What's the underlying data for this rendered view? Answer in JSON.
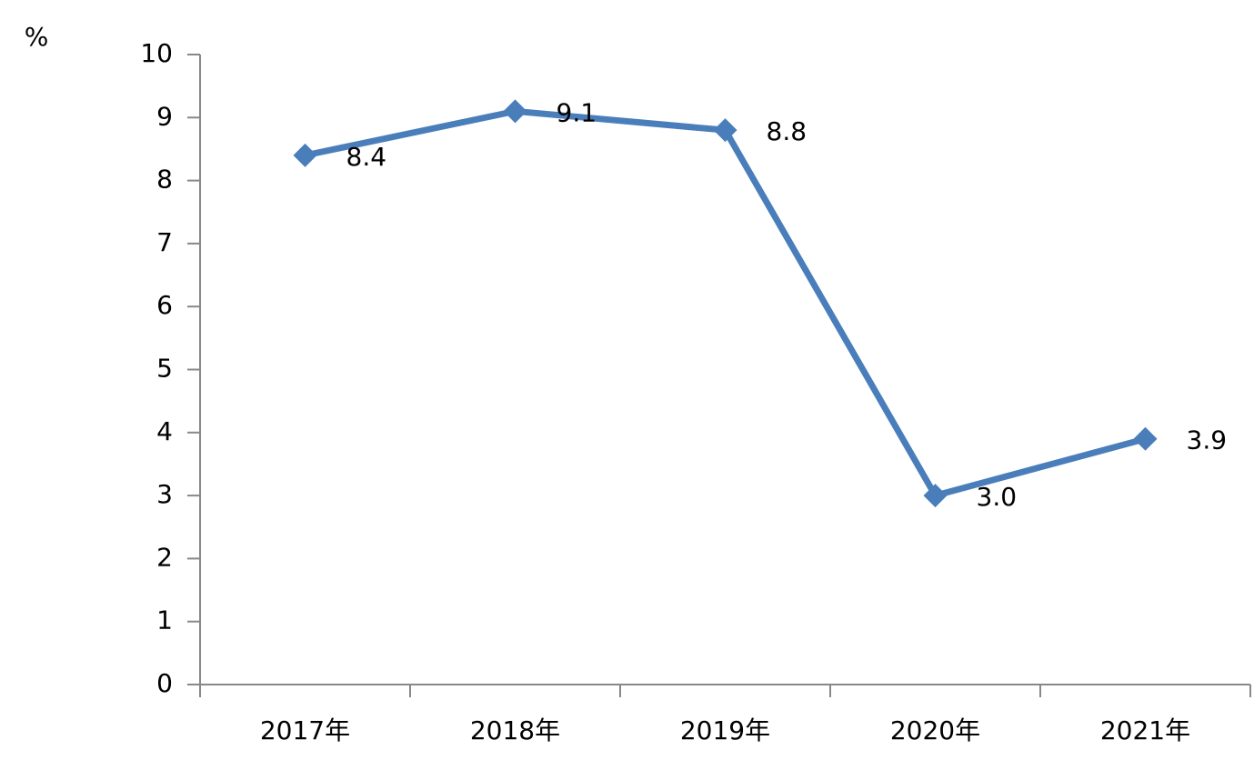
{
  "chart_data": {
    "type": "line",
    "y_label": "%",
    "categories": [
      "2017年",
      "2018年",
      "2019年",
      "2020年",
      "2021年"
    ],
    "values": [
      8.4,
      9.1,
      8.8,
      3.0,
      3.9
    ],
    "value_labels": [
      "8.4",
      "9.1",
      "8.8",
      "3.0",
      "3.9"
    ],
    "color": "#4a7ebb",
    "ylim": [
      0,
      10
    ],
    "yticks": [
      0,
      1,
      2,
      3,
      4,
      5,
      6,
      7,
      8,
      9,
      10
    ]
  }
}
